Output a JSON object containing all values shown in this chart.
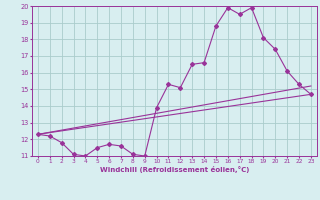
{
  "xlabel": "Windchill (Refroidissement éolien,°C)",
  "bg_color": "#d8eef0",
  "line_color": "#993399",
  "grid_color": "#aacccc",
  "xlim": [
    -0.5,
    23.5
  ],
  "ylim": [
    11,
    20
  ],
  "xticks": [
    0,
    1,
    2,
    3,
    4,
    5,
    6,
    7,
    8,
    9,
    10,
    11,
    12,
    13,
    14,
    15,
    16,
    17,
    18,
    19,
    20,
    21,
    22,
    23
  ],
  "yticks": [
    11,
    12,
    13,
    14,
    15,
    16,
    17,
    18,
    19,
    20
  ],
  "line1_x": [
    0,
    1,
    2,
    3,
    4,
    5,
    6,
    7,
    8,
    9,
    10,
    11,
    12,
    13,
    14,
    15,
    16,
    17,
    18,
    19,
    20,
    21,
    22,
    23
  ],
  "line1_y": [
    12.3,
    12.2,
    11.8,
    11.1,
    11.0,
    11.5,
    11.7,
    11.6,
    11.1,
    11.0,
    13.9,
    15.3,
    15.1,
    16.5,
    16.6,
    18.8,
    19.9,
    19.5,
    19.9,
    18.1,
    17.4,
    16.1,
    15.3,
    14.7
  ],
  "line2_x": [
    0,
    23
  ],
  "line2_y": [
    12.3,
    14.7
  ],
  "line3_x": [
    0,
    23
  ],
  "line3_y": [
    12.3,
    15.2
  ]
}
